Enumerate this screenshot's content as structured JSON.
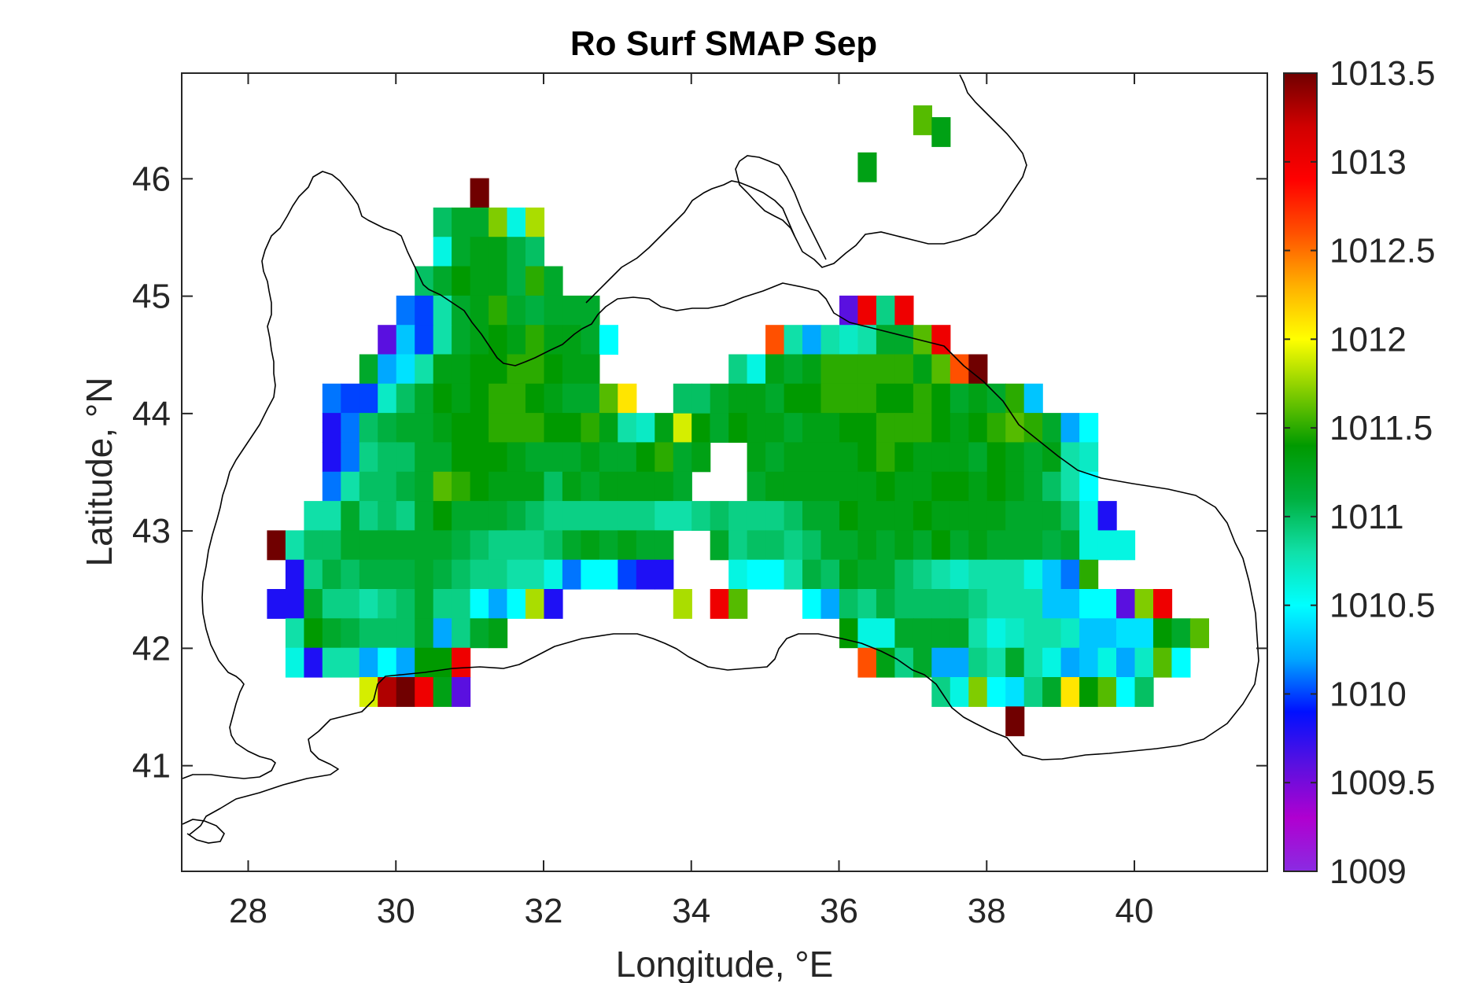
{
  "chart_data": {
    "type": "heatmap",
    "title": "Ro Surf SMAP Sep",
    "xlabel": "Longitude, °E",
    "ylabel": "Latitude, °N",
    "xlim": [
      27.1,
      41.8
    ],
    "ylim": [
      40.1,
      46.9
    ],
    "xticks": [
      28,
      30,
      32,
      34,
      36,
      38,
      40
    ],
    "yticks": [
      41,
      42,
      43,
      44,
      45,
      46
    ],
    "xtick_labels": [
      "28",
      "30",
      "32",
      "34",
      "36",
      "38",
      "40"
    ],
    "ytick_labels": [
      "41",
      "42",
      "43",
      "44",
      "45",
      "46"
    ],
    "colorbar": {
      "min": 1009,
      "max": 1013.5,
      "ticks": [
        1009,
        1009.5,
        1010,
        1010.5,
        1011,
        1011.5,
        1012,
        1012.5,
        1013,
        1013.5
      ],
      "tick_labels": [
        "1009",
        "1009.5",
        "1010",
        "1010.5",
        "1011",
        "1011.5",
        "1012",
        "1012.5",
        "1013",
        "1013.5"
      ],
      "colormap": [
        "#8a2be2",
        "#b000d0",
        "#5a10e0",
        "#0010ff",
        "#00a8ff",
        "#00ffff",
        "#10e0a8",
        "#00b040",
        "#009a00",
        "#80cc00",
        "#ffff00",
        "#ffb000",
        "#ff5000",
        "#ff0000",
        "#d00000",
        "#700000"
      ]
    },
    "grid": false,
    "grid_cell_deg": 0.25,
    "cells_note": "",
    "rows": [
      {
        "lat": 46.5,
        "start": 37.13,
        "values": [
          1011.6
        ]
      },
      {
        "lat": 46.4,
        "start": 37.38,
        "values": [
          1011.3
        ]
      },
      {
        "lat": 46.1,
        "start": 36.38,
        "values": [
          1011.3
        ]
      },
      {
        "lat": 45.88,
        "start": 31.13,
        "values": [
          1013.5
        ]
      },
      {
        "lat": 45.63,
        "start": 30.63,
        "values": [
          1011.0,
          1011.2,
          1011.2,
          1011.7,
          1010.6,
          1011.8
        ]
      },
      {
        "lat": 45.38,
        "start": 30.63,
        "values": [
          1010.6,
          1011.2,
          1011.3,
          1011.3,
          1011.1,
          1011.0
        ]
      },
      {
        "lat": 45.13,
        "start": 30.38,
        "values": [
          1011.0,
          1011.2,
          1011.4,
          1011.3,
          1011.3,
          1011.1,
          1011.5,
          1011.2
        ]
      },
      {
        "lat": 44.88,
        "start": 30.13,
        "values": [
          1010.1,
          1010.0,
          1010.8,
          1011.2,
          1011.3,
          1011.5,
          1011.2,
          1011.1,
          1011.2,
          1011.2,
          1011.2
        ]
      },
      {
        "lat": 44.63,
        "start": 29.88,
        "values": [
          1009.6,
          1010.3,
          1010.0,
          1010.8,
          1011.2,
          1011.3,
          1011.4,
          1011.3,
          1011.5,
          1011.3,
          1011.3,
          1011.2,
          1010.5
        ]
      },
      {
        "lat": 44.38,
        "start": 29.63,
        "values": [
          1011.2,
          1010.2,
          1010.4,
          1010.8,
          1011.3,
          1011.3,
          1011.4,
          1011.4,
          1011.5,
          1011.5,
          1011.4,
          1011.3,
          1011.3
        ]
      },
      {
        "lat": 44.13,
        "start": 29.13,
        "values": [
          1010.1,
          1010.0,
          1010.0,
          1010.7,
          1011.0,
          1011.2,
          1011.4,
          1011.3,
          1011.4,
          1011.5,
          1011.5,
          1011.4,
          1011.3,
          1011.2,
          1011.2,
          1011.6,
          1012.1
        ]
      },
      {
        "lat": 43.88,
        "start": 29.13,
        "values": [
          1009.8,
          1010.1,
          1011.0,
          1011.1,
          1011.2,
          1011.2,
          1011.3,
          1011.4,
          1011.4,
          1011.5,
          1011.5,
          1011.5,
          1011.4,
          1011.4,
          1011.5,
          1011.3,
          1010.8,
          1010.7,
          1011.3,
          1011.9,
          1011.4,
          1011.0
        ]
      },
      {
        "lat": 43.63,
        "start": 29.13,
        "values": [
          1009.8,
          1010.1,
          1010.9,
          1011.0,
          1011.0,
          1011.2,
          1011.2,
          1011.4,
          1011.4,
          1011.4,
          1011.3,
          1011.2,
          1011.2,
          1011.2,
          1011.3,
          1011.2,
          1011.2,
          1011.4,
          1011.5,
          1011.2,
          1011.3
        ]
      },
      {
        "lat": 43.38,
        "start": 29.13,
        "values": [
          1010.1,
          1010.8,
          1011.0,
          1011.0,
          1011.1,
          1011.2,
          1011.6,
          1011.5,
          1011.4,
          1011.3,
          1011.3,
          1011.3,
          1011.0,
          1011.3,
          1011.2,
          1011.3,
          1011.3,
          1011.3,
          1011.3,
          1011.2
        ]
      },
      {
        "lat": 43.13,
        "start": 28.88,
        "values": [
          1010.8,
          1010.8,
          1011.2,
          1010.9,
          1011.0,
          1010.9,
          1011.2,
          1011.4,
          1011.2,
          1011.2,
          1011.2,
          1011.1,
          1011.0,
          1010.9,
          1010.9,
          1010.9,
          1010.9,
          1010.9,
          1010.9,
          1010.8,
          1010.8,
          1010.9,
          1011.0
        ]
      },
      {
        "lat": 42.88,
        "start": 28.38,
        "values": [
          1013.5,
          1010.8,
          1011.0,
          1011.0,
          1011.2,
          1011.2,
          1011.2,
          1011.2,
          1011.2,
          1011.2,
          1011.1,
          1011.0,
          1010.9,
          1010.9,
          1010.9,
          1011.0,
          1011.2,
          1011.3,
          1011.2,
          1011.3,
          1011.2,
          1011.2
        ]
      },
      {
        "lat": 42.63,
        "start": 28.63,
        "values": [
          1009.8,
          1010.9,
          1011.1,
          1011.0,
          1011.1,
          1011.1,
          1011.1,
          1011.2,
          1011.1,
          1011.0,
          1010.9,
          1010.9,
          1010.8,
          1010.8,
          1010.6,
          1010.1,
          1010.5,
          1010.5,
          1010.0,
          1009.8,
          1009.8
        ]
      },
      {
        "lat": 42.38,
        "start": 28.38,
        "values": [
          1009.8,
          1009.8,
          1011.2,
          1010.9,
          1010.9,
          1010.8,
          1010.9,
          1011.0,
          1011.2,
          1010.9,
          1010.9,
          1010.5,
          1010.2,
          1010.5,
          1011.8,
          1009.8
        ]
      },
      {
        "lat": 42.13,
        "start": 28.63,
        "values": [
          1010.8,
          1011.4,
          1011.2,
          1011.1,
          1011.0,
          1011.0,
          1011.0,
          1011.2,
          1010.2,
          1010.9,
          1011.2,
          1011.3
        ]
      },
      {
        "lat": 41.88,
        "start": 28.63,
        "values": [
          1010.6,
          1009.8,
          1010.8,
          1010.8,
          1010.2,
          1010.5,
          1010.2,
          1011.4,
          1011.4,
          1013.0
        ]
      },
      {
        "lat": 41.63,
        "start": 29.63,
        "values": [
          1011.9,
          1013.3,
          1013.5,
          1013.0,
          1011.3,
          1009.6
        ]
      },
      {
        "lat": 44.88,
        "start": 36.13,
        "values": [
          1009.6,
          1013.0,
          1010.9,
          1013.0
        ]
      },
      {
        "lat": 44.63,
        "start": 35.13,
        "values": [
          1012.6,
          1010.8,
          1010.2,
          1010.8,
          1010.7,
          1010.8,
          1011.2,
          1011.2,
          1011.6,
          1013.0
        ]
      },
      {
        "lat": 44.38,
        "start": 34.63,
        "values": [
          1010.9,
          1010.6,
          1011.3,
          1011.2,
          1011.3,
          1011.5,
          1011.5,
          1011.5,
          1011.5,
          1011.5,
          1011.3,
          1011.6,
          1012.6,
          1013.5
        ]
      },
      {
        "lat": 44.13,
        "start": 33.88,
        "values": [
          1011.0,
          1011.0,
          1011.2,
          1011.3,
          1011.3,
          1011.2,
          1011.4,
          1011.4,
          1011.5,
          1011.5,
          1011.5,
          1011.4,
          1011.4,
          1011.5,
          1011.4,
          1011.2,
          1011.3,
          1011.2,
          1011.5,
          1010.3
        ]
      },
      {
        "lat": 43.88,
        "start": 34.38,
        "values": [
          1011.2,
          1011.4,
          1011.3,
          1011.3,
          1011.2,
          1011.3,
          1011.3,
          1011.4,
          1011.4,
          1011.5,
          1011.5,
          1011.5,
          1011.4,
          1011.3,
          1011.4,
          1011.5,
          1011.6,
          1011.5,
          1011.2,
          1010.2,
          1010.5
        ]
      },
      {
        "lat": 43.63,
        "start": 34.88,
        "values": [
          1011.3,
          1011.2,
          1011.3,
          1011.3,
          1011.3,
          1011.3,
          1011.4,
          1011.5,
          1011.4,
          1011.3,
          1011.3,
          1011.3,
          1011.2,
          1011.4,
          1011.3,
          1011.2,
          1011.3,
          1010.8,
          1010.7
        ]
      },
      {
        "lat": 43.38,
        "start": 34.88,
        "values": [
          1011.2,
          1011.3,
          1011.3,
          1011.3,
          1011.3,
          1011.3,
          1011.3,
          1011.4,
          1011.3,
          1011.3,
          1011.4,
          1011.4,
          1011.3,
          1011.4,
          1011.3,
          1011.2,
          1011.0,
          1010.8,
          1010.5
        ]
      },
      {
        "lat": 43.13,
        "start": 34.63,
        "values": [
          1010.9,
          1010.9,
          1010.9,
          1011.0,
          1011.2,
          1011.2,
          1011.4,
          1011.3,
          1011.3,
          1011.3,
          1011.4,
          1011.3,
          1011.3,
          1011.3,
          1011.3,
          1011.2,
          1011.2,
          1011.2,
          1011.0,
          1010.6,
          1009.8
        ]
      },
      {
        "lat": 42.88,
        "start": 34.38,
        "values": [
          1011.2,
          1010.9,
          1011.0,
          1011.0,
          1010.9,
          1011.0,
          1011.2,
          1011.2,
          1011.3,
          1011.2,
          1011.3,
          1011.2,
          1011.4,
          1011.2,
          1011.3,
          1011.2,
          1011.2,
          1011.2,
          1011.1,
          1011.2,
          1010.6,
          1010.6,
          1010.6
        ]
      },
      {
        "lat": 42.63,
        "start": 34.63,
        "values": [
          1010.6,
          1010.5,
          1010.5,
          1010.8,
          1011.1,
          1011.0,
          1011.3,
          1011.2,
          1011.2,
          1011.0,
          1010.9,
          1010.8,
          1010.7,
          1010.8,
          1010.8,
          1010.8,
          1010.6,
          1010.3,
          1010.1,
          1011.5
        ]
      },
      {
        "lat": 42.38,
        "start": 33.88,
        "values": [
          1011.8
        ]
      },
      {
        "lat": 42.38,
        "start": 34.38,
        "values": [
          1013.0,
          1011.6
        ]
      },
      {
        "lat": 42.38,
        "start": 35.63,
        "values": [
          1010.5,
          1010.2,
          1011.0,
          1010.9,
          1011.1,
          1011.0,
          1011.0,
          1011.0,
          1011.0,
          1010.9,
          1010.8,
          1010.8,
          1010.8,
          1010.3,
          1010.3,
          1010.5,
          1010.5,
          1009.6,
          1011.7,
          1013.0
        ]
      },
      {
        "lat": 42.13,
        "start": 36.13,
        "values": [
          1011.4,
          1010.6,
          1010.6,
          1011.2,
          1011.2,
          1011.2,
          1011.2,
          1010.8,
          1010.6,
          1010.7,
          1010.8,
          1010.8,
          1010.7,
          1010.3,
          1010.3,
          1010.4,
          1010.4,
          1011.4,
          1011.2,
          1011.6
        ]
      },
      {
        "lat": 41.88,
        "start": 36.38,
        "values": [
          1012.6,
          1011.3,
          1010.9,
          1011.2,
          1010.2,
          1010.2,
          1010.9,
          1010.8,
          1011.2,
          1010.8,
          1010.6,
          1010.2,
          1010.3,
          1010.6,
          1010.2,
          1010.7,
          1011.6,
          1010.5
        ]
      },
      {
        "lat": 41.63,
        "start": 37.38,
        "values": [
          1010.9,
          1010.6,
          1011.7,
          1010.5,
          1010.4,
          1010.9,
          1011.2,
          1012.1,
          1011.4,
          1011.6,
          1010.5,
          1011.0
        ]
      },
      {
        "lat": 41.38,
        "start": 38.38,
        "values": [
          1013.5
        ]
      }
    ]
  }
}
